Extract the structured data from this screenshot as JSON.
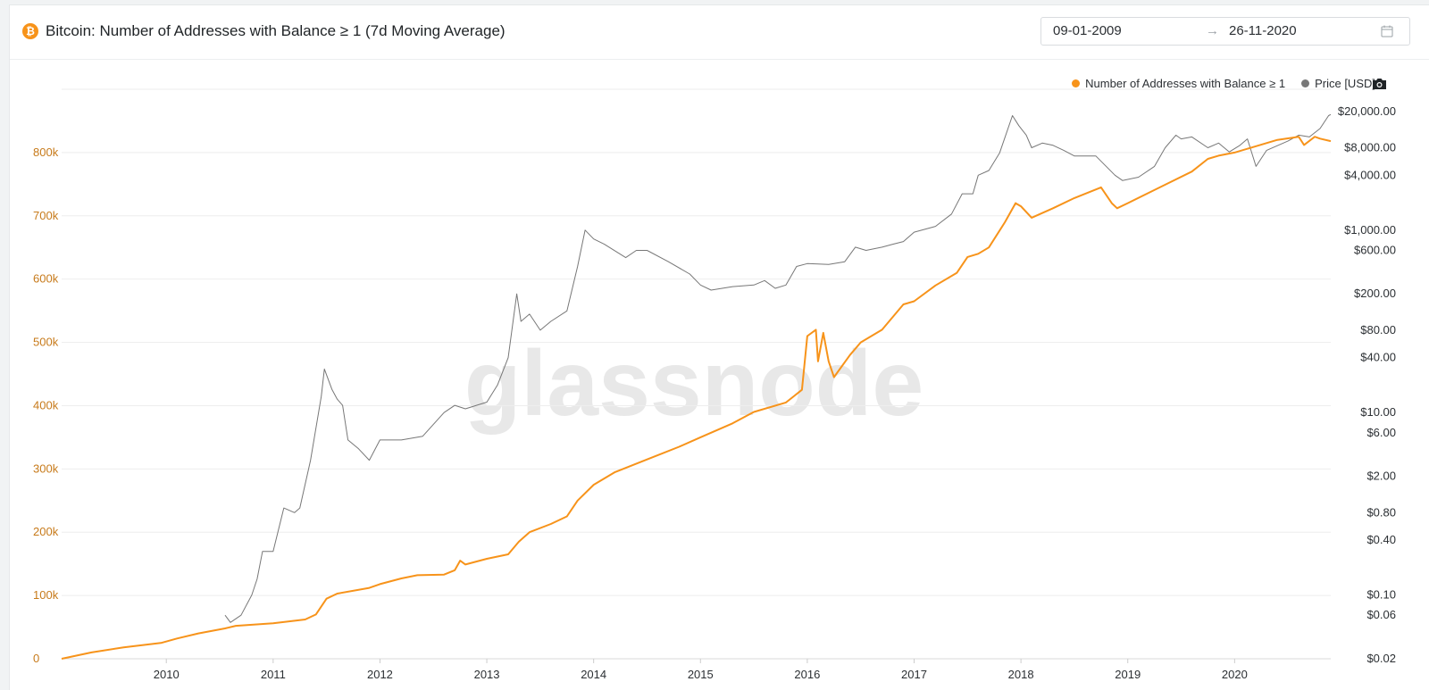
{
  "header": {
    "title": "Bitcoin: Number of Addresses with Balance ≥ 1 (7d Moving Average)",
    "date_start": "09-01-2009",
    "date_arrow": "→",
    "date_end": "26-11-2020",
    "icons": {
      "coin": "bitcoin-icon",
      "calendar": "calendar-icon",
      "screenshot": "camera-icon"
    }
  },
  "colors": {
    "addresses": "#f7931a",
    "price": "#777777",
    "left_axis_text": "#c77a1a"
  },
  "chart_data": {
    "type": "line",
    "watermark": "glassnode",
    "legend": [
      {
        "name": "Number of Addresses with Balance ≥ 1",
        "color": "#f7931a"
      },
      {
        "name": "Price [USD]",
        "color": "#777777"
      }
    ],
    "x_ticks": [
      "2010",
      "2011",
      "2012",
      "2013",
      "2014",
      "2015",
      "2016",
      "2017",
      "2018",
      "2019",
      "2020"
    ],
    "x_range": [
      2009.02,
      2020.9
    ],
    "y_left": {
      "scale": "linear",
      "range": [
        0,
        900000
      ],
      "ticks": [
        0,
        100000,
        200000,
        300000,
        400000,
        500000,
        600000,
        700000,
        800000
      ],
      "tick_labels": [
        "0",
        "100k",
        "200k",
        "300k",
        "400k",
        "500k",
        "600k",
        "700k",
        "800k"
      ]
    },
    "y_right": {
      "scale": "log",
      "range": [
        0.02,
        35000
      ],
      "ticks": [
        0.02,
        0.06,
        0.1,
        0.4,
        0.8,
        2,
        6,
        10,
        40,
        80,
        200,
        600,
        1000,
        4000,
        8000,
        20000
      ],
      "tick_labels": [
        "$0.02",
        "$0.06",
        "$0.10",
        "$0.40",
        "$0.80",
        "$2.00",
        "$6.00",
        "$10.00",
        "$40.00",
        "$80.00",
        "$200.00",
        "$600.00",
        "$1,000.00",
        "$4,000.00",
        "$8,000.00",
        "$20,000.00"
      ]
    },
    "series": [
      {
        "name": "Number of Addresses with Balance ≥ 1",
        "axis": "left",
        "color": "#f7931a",
        "points": [
          [
            2009.02,
            0
          ],
          [
            2009.3,
            10000
          ],
          [
            2009.6,
            18000
          ],
          [
            2009.95,
            25000
          ],
          [
            2010.1,
            32000
          ],
          [
            2010.3,
            40000
          ],
          [
            2010.55,
            48000
          ],
          [
            2010.65,
            52000
          ],
          [
            2011.0,
            56000
          ],
          [
            2011.3,
            62000
          ],
          [
            2011.4,
            70000
          ],
          [
            2011.5,
            95000
          ],
          [
            2011.6,
            103000
          ],
          [
            2011.9,
            112000
          ],
          [
            2012.0,
            118000
          ],
          [
            2012.2,
            127000
          ],
          [
            2012.35,
            132000
          ],
          [
            2012.6,
            133000
          ],
          [
            2012.7,
            140000
          ],
          [
            2012.75,
            155000
          ],
          [
            2012.8,
            149000
          ],
          [
            2013.0,
            158000
          ],
          [
            2013.2,
            165000
          ],
          [
            2013.3,
            185000
          ],
          [
            2013.4,
            200000
          ],
          [
            2013.6,
            213000
          ],
          [
            2013.75,
            225000
          ],
          [
            2013.85,
            250000
          ],
          [
            2014.0,
            275000
          ],
          [
            2014.2,
            295000
          ],
          [
            2014.5,
            315000
          ],
          [
            2014.8,
            335000
          ],
          [
            2015.0,
            350000
          ],
          [
            2015.3,
            372000
          ],
          [
            2015.5,
            390000
          ],
          [
            2015.8,
            405000
          ],
          [
            2015.95,
            425000
          ],
          [
            2016.0,
            510000
          ],
          [
            2016.08,
            520000
          ],
          [
            2016.1,
            470000
          ],
          [
            2016.15,
            515000
          ],
          [
            2016.2,
            470000
          ],
          [
            2016.25,
            445000
          ],
          [
            2016.4,
            480000
          ],
          [
            2016.5,
            500000
          ],
          [
            2016.7,
            520000
          ],
          [
            2016.9,
            560000
          ],
          [
            2017.0,
            565000
          ],
          [
            2017.2,
            590000
          ],
          [
            2017.4,
            610000
          ],
          [
            2017.5,
            635000
          ],
          [
            2017.6,
            640000
          ],
          [
            2017.7,
            650000
          ],
          [
            2017.85,
            690000
          ],
          [
            2017.95,
            720000
          ],
          [
            2018.0,
            715000
          ],
          [
            2018.1,
            697000
          ],
          [
            2018.3,
            712000
          ],
          [
            2018.5,
            728000
          ],
          [
            2018.75,
            745000
          ],
          [
            2018.85,
            720000
          ],
          [
            2018.9,
            712000
          ],
          [
            2019.0,
            720000
          ],
          [
            2019.3,
            745000
          ],
          [
            2019.6,
            770000
          ],
          [
            2019.75,
            790000
          ],
          [
            2019.85,
            795000
          ],
          [
            2020.0,
            800000
          ],
          [
            2020.2,
            810000
          ],
          [
            2020.4,
            820000
          ],
          [
            2020.6,
            825000
          ],
          [
            2020.65,
            812000
          ],
          [
            2020.75,
            825000
          ],
          [
            2020.8,
            822000
          ],
          [
            2020.9,
            818000
          ]
        ]
      },
      {
        "name": "Price [USD]",
        "axis": "right",
        "color": "#777777",
        "points": [
          [
            2010.55,
            0.06
          ],
          [
            2010.6,
            0.05
          ],
          [
            2010.7,
            0.06
          ],
          [
            2010.8,
            0.1
          ],
          [
            2010.85,
            0.15
          ],
          [
            2010.9,
            0.3
          ],
          [
            2011.0,
            0.3
          ],
          [
            2011.1,
            0.9
          ],
          [
            2011.2,
            0.8
          ],
          [
            2011.25,
            0.9
          ],
          [
            2011.35,
            3
          ],
          [
            2011.45,
            15
          ],
          [
            2011.48,
            30
          ],
          [
            2011.55,
            18
          ],
          [
            2011.6,
            14
          ],
          [
            2011.65,
            12
          ],
          [
            2011.7,
            5
          ],
          [
            2011.8,
            4
          ],
          [
            2011.9,
            3
          ],
          [
            2012.0,
            5
          ],
          [
            2012.2,
            5
          ],
          [
            2012.4,
            5.5
          ],
          [
            2012.6,
            10
          ],
          [
            2012.7,
            12
          ],
          [
            2012.8,
            11
          ],
          [
            2013.0,
            13
          ],
          [
            2013.1,
            20
          ],
          [
            2013.2,
            40
          ],
          [
            2013.28,
            200
          ],
          [
            2013.32,
            100
          ],
          [
            2013.4,
            120
          ],
          [
            2013.5,
            80
          ],
          [
            2013.6,
            100
          ],
          [
            2013.75,
            130
          ],
          [
            2013.85,
            400
          ],
          [
            2013.92,
            1000
          ],
          [
            2014.0,
            800
          ],
          [
            2014.1,
            700
          ],
          [
            2014.3,
            500
          ],
          [
            2014.4,
            600
          ],
          [
            2014.5,
            600
          ],
          [
            2014.7,
            450
          ],
          [
            2014.9,
            330
          ],
          [
            2015.0,
            250
          ],
          [
            2015.1,
            220
          ],
          [
            2015.3,
            240
          ],
          [
            2015.5,
            250
          ],
          [
            2015.6,
            280
          ],
          [
            2015.7,
            230
          ],
          [
            2015.8,
            250
          ],
          [
            2015.9,
            400
          ],
          [
            2016.0,
            430
          ],
          [
            2016.2,
            420
          ],
          [
            2016.35,
            450
          ],
          [
            2016.45,
            650
          ],
          [
            2016.55,
            600
          ],
          [
            2016.7,
            650
          ],
          [
            2016.8,
            700
          ],
          [
            2016.9,
            750
          ],
          [
            2017.0,
            950
          ],
          [
            2017.2,
            1100
          ],
          [
            2017.35,
            1500
          ],
          [
            2017.45,
            2500
          ],
          [
            2017.55,
            2500
          ],
          [
            2017.6,
            4000
          ],
          [
            2017.7,
            4500
          ],
          [
            2017.8,
            7000
          ],
          [
            2017.92,
            18000
          ],
          [
            2017.98,
            14000
          ],
          [
            2018.05,
            11000
          ],
          [
            2018.1,
            8000
          ],
          [
            2018.2,
            9000
          ],
          [
            2018.3,
            8500
          ],
          [
            2018.4,
            7500
          ],
          [
            2018.5,
            6500
          ],
          [
            2018.7,
            6500
          ],
          [
            2018.88,
            4000
          ],
          [
            2018.95,
            3500
          ],
          [
            2019.1,
            3800
          ],
          [
            2019.25,
            5000
          ],
          [
            2019.35,
            8000
          ],
          [
            2019.45,
            11000
          ],
          [
            2019.5,
            10000
          ],
          [
            2019.6,
            10500
          ],
          [
            2019.75,
            8000
          ],
          [
            2019.85,
            9000
          ],
          [
            2019.95,
            7200
          ],
          [
            2020.05,
            8500
          ],
          [
            2020.12,
            10000
          ],
          [
            2020.2,
            5000
          ],
          [
            2020.3,
            7500
          ],
          [
            2020.5,
            9500
          ],
          [
            2020.6,
            11000
          ],
          [
            2020.7,
            10500
          ],
          [
            2020.8,
            13000
          ],
          [
            2020.88,
            18000
          ],
          [
            2020.9,
            18500
          ]
        ]
      }
    ]
  }
}
